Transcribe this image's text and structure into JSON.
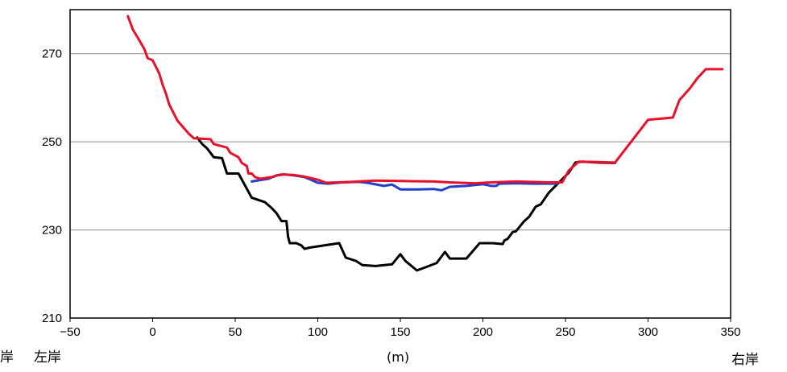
{
  "chart_data": {
    "type": "line",
    "xlim": [
      -50,
      350
    ],
    "ylim": [
      210,
      280
    ],
    "x_ticks": [
      "-50",
      "0",
      "50",
      "100",
      "150",
      "200",
      "250",
      "300",
      "350"
    ],
    "y_ticks": [
      "210",
      "230",
      "250",
      "270"
    ],
    "gridlines": "horizontal",
    "xlabel": "(m)",
    "left_bank_label": "左岸",
    "right_bank_label": "右岸",
    "edge_label": "岸",
    "series": [
      {
        "color": "#000000",
        "points": [
          [
            27,
            251
          ],
          [
            30,
            249.5
          ],
          [
            33,
            248.5
          ],
          [
            37,
            246.5
          ],
          [
            42,
            246.3
          ],
          [
            45,
            242.8
          ],
          [
            52,
            242.8
          ],
          [
            60,
            237.3
          ],
          [
            68,
            236.3
          ],
          [
            72,
            235
          ],
          [
            75,
            233.8
          ],
          [
            78,
            232
          ],
          [
            81,
            232
          ],
          [
            82,
            228.5
          ],
          [
            83,
            227
          ],
          [
            87,
            227
          ],
          [
            90,
            226.5
          ],
          [
            92,
            225.7
          ],
          [
            95,
            226
          ],
          [
            113,
            227
          ],
          [
            117,
            223.7
          ],
          [
            123,
            223
          ],
          [
            127,
            222
          ],
          [
            135,
            221.8
          ],
          [
            145,
            222.2
          ],
          [
            150,
            224.5
          ],
          [
            153,
            223
          ],
          [
            160,
            220.8
          ],
          [
            165,
            221.5
          ],
          [
            172,
            222.5
          ],
          [
            177,
            225
          ],
          [
            180,
            223.5
          ],
          [
            190,
            223.5
          ],
          [
            198,
            227
          ],
          [
            206,
            227
          ],
          [
            212,
            226.8
          ],
          [
            213,
            227.6
          ],
          [
            215,
            228
          ],
          [
            218,
            229.5
          ],
          [
            220,
            229.7
          ],
          [
            225,
            232
          ],
          [
            228,
            233
          ],
          [
            232,
            235.3
          ],
          [
            235,
            235.8
          ],
          [
            240,
            238.5
          ],
          [
            248,
            241.5
          ],
          [
            252,
            243
          ],
          [
            256,
            245.3
          ],
          [
            260,
            245.5
          ],
          [
            270,
            245.3
          ],
          [
            280,
            245.2
          ]
        ]
      },
      {
        "color": "#1f3fd0",
        "points": [
          [
            60,
            241
          ],
          [
            65,
            241.3
          ],
          [
            70,
            241.6
          ],
          [
            75,
            242.4
          ],
          [
            80,
            242.6
          ],
          [
            85,
            242.4
          ],
          [
            92,
            242
          ],
          [
            100,
            240.7
          ],
          [
            106,
            240.5
          ],
          [
            115,
            240.8
          ],
          [
            125,
            240.9
          ],
          [
            130,
            240.7
          ],
          [
            140,
            240
          ],
          [
            145,
            240.3
          ],
          [
            150,
            239.2
          ],
          [
            160,
            239.2
          ],
          [
            170,
            239.3
          ],
          [
            175,
            239
          ],
          [
            180,
            239.8
          ],
          [
            190,
            240
          ],
          [
            200,
            240.4
          ],
          [
            205,
            240
          ],
          [
            208,
            240
          ],
          [
            210,
            240.5
          ],
          [
            220,
            240.6
          ],
          [
            230,
            240.5
          ],
          [
            245,
            240.5
          ]
        ]
      },
      {
        "color": "#e8102a",
        "points": [
          [
            -15,
            278.5
          ],
          [
            -12,
            275.5
          ],
          [
            -8,
            273
          ],
          [
            -5,
            271
          ],
          [
            -3,
            269
          ],
          [
            0,
            268.5
          ],
          [
            2,
            267
          ],
          [
            4,
            265.5
          ],
          [
            6,
            263
          ],
          [
            8,
            261
          ],
          [
            10,
            258.5
          ],
          [
            15,
            254.8
          ],
          [
            22,
            251.8
          ],
          [
            25,
            250.8
          ],
          [
            35,
            250.6
          ],
          [
            37,
            249.5
          ],
          [
            45,
            248.7
          ],
          [
            47,
            247.5
          ],
          [
            52,
            246.5
          ],
          [
            54,
            245.2
          ],
          [
            57,
            244.5
          ],
          [
            58,
            242.8
          ],
          [
            60,
            242.8
          ],
          [
            62,
            242
          ],
          [
            65,
            241.6
          ],
          [
            72,
            242
          ],
          [
            78,
            242.6
          ],
          [
            85,
            242.5
          ],
          [
            92,
            242.1
          ],
          [
            100,
            241.4
          ],
          [
            105,
            240.7
          ],
          [
            120,
            240.9
          ],
          [
            135,
            241.2
          ],
          [
            150,
            241.1
          ],
          [
            170,
            241
          ],
          [
            180,
            240.8
          ],
          [
            195,
            240.6
          ],
          [
            205,
            240.8
          ],
          [
            220,
            241
          ],
          [
            240,
            240.8
          ],
          [
            248,
            240.8
          ],
          [
            252,
            243.5
          ],
          [
            258,
            245.5
          ],
          [
            270,
            245.4
          ],
          [
            280,
            245.3
          ],
          [
            300,
            255
          ],
          [
            315,
            255.5
          ],
          [
            319,
            259.5
          ],
          [
            325,
            262
          ],
          [
            330,
            264.5
          ],
          [
            335,
            266.5
          ],
          [
            345,
            266.5
          ]
        ]
      }
    ]
  }
}
